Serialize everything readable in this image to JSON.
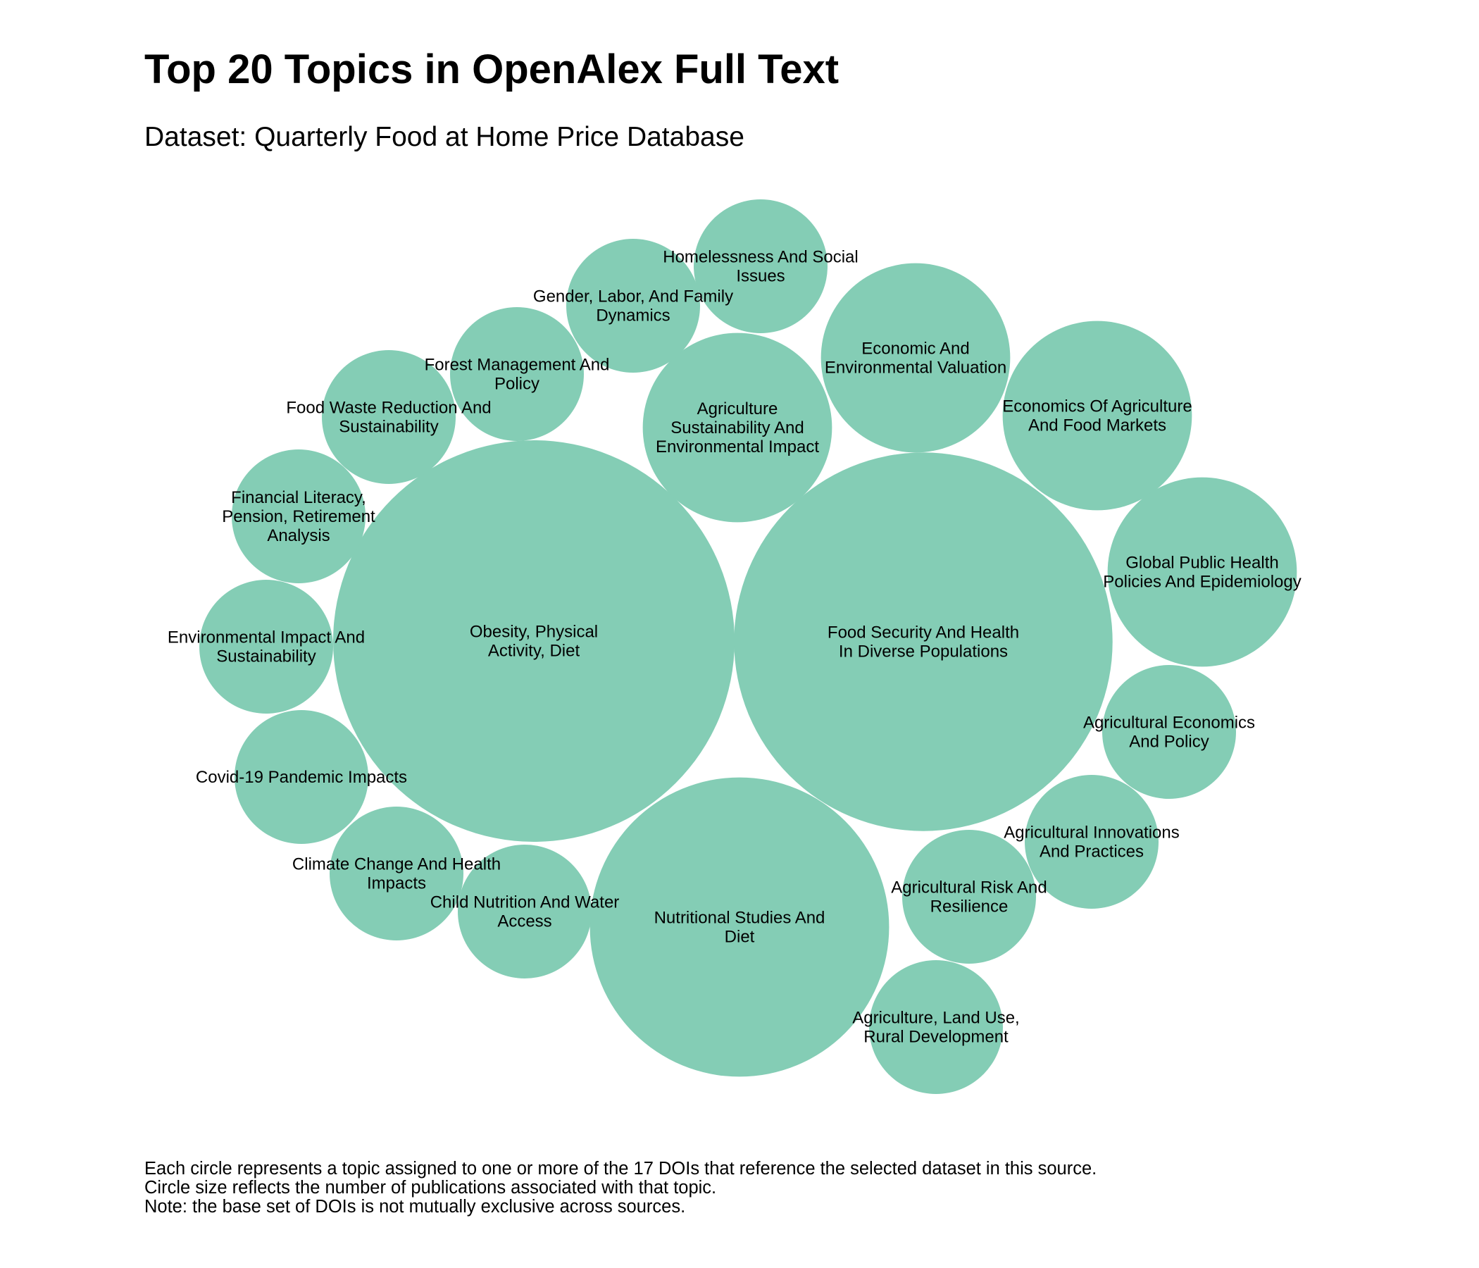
{
  "chart_data": {
    "type": "bubble",
    "title": "Top 20 Topics in OpenAlex Full Text",
    "subtitle": "Dataset: Quarterly Food at Home Price Database",
    "bubble_color": "#84cdb5",
    "note_lines": [
      "Each circle represents a topic assigned to one or more of the 17 DOIs that reference the selected dataset in this source.",
      "Circle size reflects the number of publications associated with that topic.",
      "Note: the base set of DOIs is not mutually exclusive across sources."
    ],
    "series": [
      {
        "name": "Food Security And Health In Diverse Populations",
        "lines": [
          "Food Security And Health",
          "In Diverse Populations"
        ],
        "value": 8
      },
      {
        "name": "Obesity, Physical Activity, Diet",
        "lines": [
          "Obesity, Physical",
          "Activity, Diet"
        ],
        "value": 9
      },
      {
        "name": "Nutritional Studies And Diet",
        "lines": [
          "Nutritional Studies And",
          "Diet"
        ],
        "value": 5
      },
      {
        "name": "Agriculture Sustainability And Environmental Impact",
        "lines": [
          "Agriculture",
          "Sustainability And",
          "Environmental Impact"
        ],
        "value": 2
      },
      {
        "name": "Economic And Environmental Valuation",
        "lines": [
          "Economic And",
          "Environmental Valuation"
        ],
        "value": 2
      },
      {
        "name": "Economics Of Agriculture And Food Markets",
        "lines": [
          "Economics Of Agriculture",
          "And Food Markets"
        ],
        "value": 2
      },
      {
        "name": "Global Public Health Policies And Epidemiology",
        "lines": [
          "Global Public Health",
          "Policies And Epidemiology"
        ],
        "value": 2
      },
      {
        "name": "Homelessness And Social Issues",
        "lines": [
          "Homelessness And Social",
          "Issues"
        ],
        "value": 1
      },
      {
        "name": "Gender, Labor, And Family Dynamics",
        "lines": [
          "Gender, Labor, And Family",
          "Dynamics"
        ],
        "value": 1
      },
      {
        "name": "Forest Management And Policy",
        "lines": [
          "Forest Management And",
          "Policy"
        ],
        "value": 1
      },
      {
        "name": "Food Waste Reduction And Sustainability",
        "lines": [
          "Food Waste Reduction And",
          "Sustainability"
        ],
        "value": 1
      },
      {
        "name": "Financial Literacy, Pension, Retirement Analysis",
        "lines": [
          "Financial Literacy,",
          "Pension, Retirement",
          "Analysis"
        ],
        "value": 1
      },
      {
        "name": "Environmental Impact And Sustainability",
        "lines": [
          "Environmental Impact And",
          "Sustainability"
        ],
        "value": 1
      },
      {
        "name": "Covid-19 Pandemic Impacts",
        "lines": [
          "Covid-19 Pandemic Impacts"
        ],
        "value": 1
      },
      {
        "name": "Climate Change And Health Impacts",
        "lines": [
          "Climate Change And Health",
          "Impacts"
        ],
        "value": 1
      },
      {
        "name": "Child Nutrition And Water Access",
        "lines": [
          "Child Nutrition And Water",
          "Access"
        ],
        "value": 1
      },
      {
        "name": "Agricultural Economics And Policy",
        "lines": [
          "Agricultural Economics",
          "And Policy"
        ],
        "value": 1
      },
      {
        "name": "Agricultural Innovations And Practices",
        "lines": [
          "Agricultural Innovations",
          "And Practices"
        ],
        "value": 1
      },
      {
        "name": "Agricultural Risk And Resilience",
        "lines": [
          "Agricultural Risk And",
          "Resilience"
        ],
        "value": 1
      },
      {
        "name": "Agriculture, Land Use, Rural Development",
        "lines": [
          "Agriculture, Land Use,",
          "Rural Development"
        ],
        "value": 1
      }
    ]
  }
}
